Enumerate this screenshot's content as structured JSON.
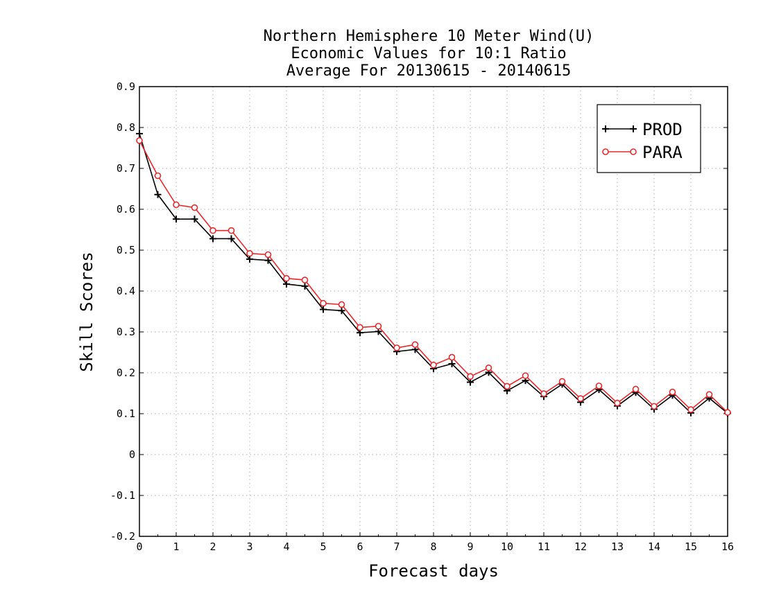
{
  "chart_data": {
    "type": "line",
    "title_lines": [
      "Northern Hemisphere 10 Meter Wind(U)",
      "Economic Values for 10:1 Ratio",
      "Average For 20130615 - 20140615"
    ],
    "xlabel": "Forecast days",
    "ylabel": "Skill Scores",
    "xlim": [
      0,
      16
    ],
    "ylim": [
      -0.2,
      0.9
    ],
    "x_ticks": [
      "0",
      "1",
      "2",
      "3",
      "4",
      "5",
      "6",
      "7",
      "8",
      "9",
      "10",
      "11",
      "12",
      "13",
      "14",
      "15",
      "16"
    ],
    "y_ticks": [
      "-0.2",
      "-0.1",
      "0",
      "0.1",
      "0.2",
      "0.3",
      "0.4",
      "0.5",
      "0.6",
      "0.7",
      "0.8",
      "0.9"
    ],
    "grid": true,
    "legend_position": "top-right",
    "x": [
      0,
      0.5,
      1,
      1.5,
      2,
      2.5,
      3,
      3.5,
      4,
      4.5,
      5,
      5.5,
      6,
      6.5,
      7,
      7.5,
      8,
      8.5,
      9,
      9.5,
      10,
      10.5,
      11,
      11.5,
      12,
      12.5,
      13,
      13.5,
      14,
      14.5,
      15,
      15.5,
      16
    ],
    "series": [
      {
        "name": "PROD",
        "color": "#000000",
        "marker": "plus",
        "values": [
          0.785,
          0.636,
          0.576,
          0.576,
          0.528,
          0.528,
          0.478,
          0.475,
          0.417,
          0.412,
          0.355,
          0.352,
          0.298,
          0.301,
          0.252,
          0.257,
          0.21,
          0.222,
          0.177,
          0.201,
          0.156,
          0.181,
          0.142,
          0.172,
          0.128,
          0.159,
          0.119,
          0.152,
          0.111,
          0.145,
          0.102,
          0.138,
          0.101
        ]
      },
      {
        "name": "PARA",
        "color": "#e8282a",
        "marker": "circle",
        "values": [
          0.768,
          0.682,
          0.611,
          0.604,
          0.548,
          0.548,
          0.492,
          0.489,
          0.431,
          0.427,
          0.37,
          0.367,
          0.311,
          0.314,
          0.261,
          0.269,
          0.219,
          0.238,
          0.191,
          0.212,
          0.167,
          0.193,
          0.149,
          0.179,
          0.137,
          0.168,
          0.126,
          0.16,
          0.118,
          0.153,
          0.11,
          0.147,
          0.103
        ]
      }
    ]
  }
}
